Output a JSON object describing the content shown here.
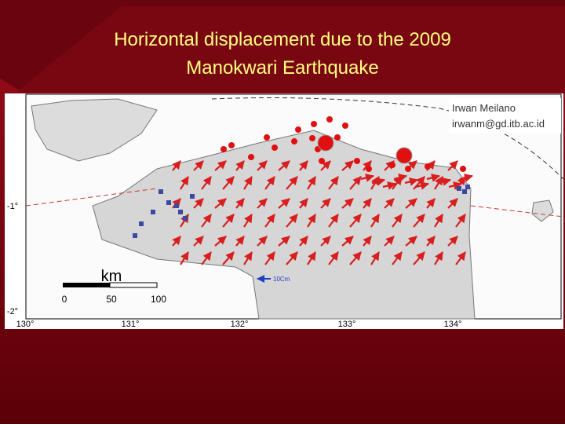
{
  "slide": {
    "title_lines": [
      "Horizontal displacement due to the 2009",
      "Manokwari Earthquake"
    ],
    "map": {
      "author": "Irwan Meilano",
      "email": "irwanm@gd.itb.ac.id",
      "scale_unit": "km",
      "scale_labels": [
        "0",
        "50",
        "100"
      ],
      "vector_scale": "10Cm",
      "lon_labels": [
        "130°",
        "131°",
        "132°",
        "133°",
        "134°"
      ],
      "lat_labels": [
        "-1°",
        "-2°"
      ]
    }
  }
}
